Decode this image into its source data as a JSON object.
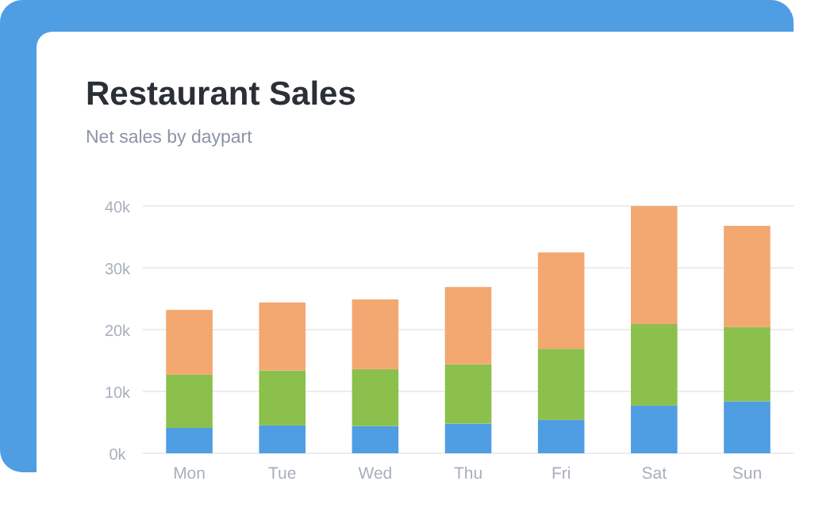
{
  "chart_data": {
    "type": "bar",
    "title": "Restaurant Sales",
    "subtitle": "Net sales by daypart",
    "categories": [
      "Mon",
      "Tue",
      "Wed",
      "Thu",
      "Fri",
      "Sat",
      "Sun"
    ],
    "stacked": true,
    "series": [
      {
        "color": "#4f9de3",
        "values": [
          4100,
          4500,
          4400,
          4800,
          5400,
          7700,
          8400
        ]
      },
      {
        "color": "#8bc04c",
        "values": [
          8600,
          8900,
          9200,
          9600,
          11500,
          13200,
          12000
        ]
      },
      {
        "color": "#f3a871",
        "values": [
          10500,
          11000,
          11300,
          12500,
          15600,
          19100,
          16400
        ]
      }
    ],
    "ylim": [
      0,
      40000
    ],
    "yticks": [
      {
        "value": 0,
        "label": "0k"
      },
      {
        "value": 10000,
        "label": "10k"
      },
      {
        "value": 20000,
        "label": "20k"
      },
      {
        "value": 30000,
        "label": "30k"
      },
      {
        "value": 40000,
        "label": "40k"
      }
    ],
    "grid": true
  }
}
